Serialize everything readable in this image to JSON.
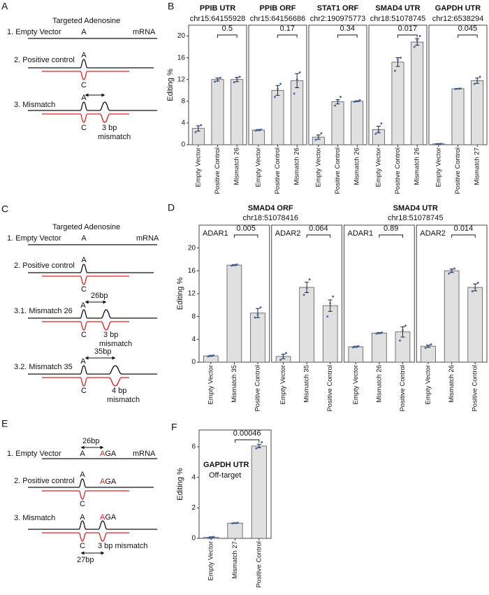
{
  "diagrams": {
    "A": {
      "panel": "A",
      "heading": "Targeted Adenosine",
      "rows": [
        {
          "label": "1. Empty Vector",
          "site": "A",
          "end": "mRNA"
        },
        {
          "label": "2. Positive control",
          "site": "A",
          "guide": "C"
        },
        {
          "label": "3. Mismatch",
          "site": "A",
          "guide": "C",
          "note": [
            "3 bp",
            "mismatch"
          ]
        }
      ]
    },
    "C": {
      "panel": "C",
      "heading": "Targeted Adenosine",
      "rows": [
        {
          "label": "1. Empty Vector",
          "site": "A",
          "end": "mRNA"
        },
        {
          "label": "2. Positive control",
          "site": "A",
          "guide": "C"
        },
        {
          "label": "3.1. Mismatch 26",
          "site": "A",
          "distance": "26bp",
          "guide": "C",
          "note": [
            "3 bp",
            "mismatch"
          ]
        },
        {
          "label": "3.2. Mismatch 35",
          "site": "A",
          "distance": "35bp",
          "guide": "C",
          "note": [
            "4 bp",
            "mismatch"
          ]
        }
      ]
    },
    "E": {
      "panel": "E",
      "distance": "26bp",
      "rows": [
        {
          "label": "1. Empty Vector",
          "site": "A",
          "off_target": [
            "A",
            "GA"
          ],
          "end": "mRNA"
        },
        {
          "label": "2. Positive control",
          "site": "A",
          "off_target": [
            "A",
            "GA"
          ],
          "guide": "C"
        },
        {
          "label": "3. Mismatch",
          "site": "A",
          "off_target": [
            "A",
            "GA"
          ],
          "guide": "C",
          "note": "3 bp mismatch",
          "distance": "27bp"
        }
      ]
    }
  },
  "chart_data": [
    {
      "type": "bar",
      "panel": "B",
      "ylabel": "Editing %",
      "ylim": [
        0,
        22
      ],
      "yticks": [
        0,
        4,
        8,
        12,
        16,
        20
      ],
      "groups": [
        {
          "title": "PPIB UTR",
          "subtitle": "chr15:64155928",
          "facets": [
            {
              "categories": [
                "Empty Vector",
                "Positive Control",
                "Mismatch 26"
              ],
              "values": [
                3.0,
                12.0,
                12.0
              ],
              "errors": [
                0.5,
                0.3,
                0.4
              ],
              "points": [
                [
                  2.3,
                  3.4,
                  3.6
                ],
                [
                  11.6,
                  12.2,
                  12.3
                ],
                [
                  11.5,
                  12.3,
                  12.5
                ]
              ],
              "p_value": 0.5
            }
          ]
        },
        {
          "title": "PPIB ORF",
          "subtitle": "chr15:64156686",
          "facets": [
            {
              "categories": [
                "Empty Vector",
                "Positive Control",
                "Mismatch 26"
              ],
              "values": [
                2.7,
                10.0,
                11.8
              ],
              "errors": [
                0.1,
                0.9,
                1.3
              ],
              "points": [
                [
                  2.6,
                  2.7,
                  2.8
                ],
                [
                  8.8,
                  10.3,
                  11.2
                ],
                [
                  9.4,
                  12.0,
                  13.3
                ]
              ],
              "p_value": 0.17
            }
          ]
        },
        {
          "title": "STAT1 ORF",
          "subtitle": "chr2:190975773",
          "facets": [
            {
              "categories": [
                "Empty Vector",
                "Positive Control",
                "Mismatch 26"
              ],
              "values": [
                1.4,
                7.9,
                8.0
              ],
              "errors": [
                0.4,
                0.4,
                0.1
              ],
              "points": [
                [
                  0.9,
                  1.4,
                  2.1
                ],
                [
                  7.2,
                  8.0,
                  8.8
                ],
                [
                  7.9,
                  8.0,
                  8.2
                ]
              ],
              "p_value": 0.34
            }
          ]
        },
        {
          "title": "SMAD4 UTR",
          "subtitle": "chr18:51078745",
          "facets": [
            {
              "categories": [
                "Empty Vector",
                "Positive Control",
                "Mismatch 26"
              ],
              "values": [
                2.8,
                15.2,
                18.9
              ],
              "errors": [
                0.6,
                0.8,
                0.6
              ],
              "points": [
                [
                  2.0,
                  2.5,
                  3.9
                ],
                [
                  13.6,
                  15.6,
                  16.0
                ],
                [
                  18.0,
                  19.2,
                  20.0
                ]
              ],
              "p_value": 0.017
            }
          ]
        },
        {
          "title": "GAPDH UTR",
          "subtitle": "chr12:6538294",
          "facets": [
            {
              "categories": [
                "Empty Vector",
                "Positive Control",
                "Mismatch 27"
              ],
              "values": [
                0.15,
                10.3,
                11.8
              ],
              "errors": [
                0.05,
                0.05,
                0.5
              ],
              "points": [
                [
                  0.1,
                  0.15,
                  0.2
                ],
                [
                  10.25,
                  10.3,
                  10.35
                ],
                [
                  11.2,
                  11.8,
                  12.5
                ]
              ],
              "p_value": 0.045
            }
          ]
        }
      ]
    },
    {
      "type": "bar",
      "panel": "D",
      "ylabel": "Editing %",
      "ylim": [
        0,
        24
      ],
      "yticks": [
        0,
        4,
        8,
        12,
        16,
        20
      ],
      "groups": [
        {
          "title": "SMAD4 ORF",
          "subtitle": "chr18:51078416",
          "facets": [
            {
              "label": "ADAR1",
              "categories": [
                "Empty Vector",
                "Mismatch 35",
                "Positive Control"
              ],
              "values": [
                1.1,
                17.0,
                8.6
              ],
              "errors": [
                0.1,
                0.1,
                0.8
              ],
              "points": [
                [
                  1.0,
                  1.1,
                  1.2
                ],
                [
                  16.9,
                  17.0,
                  17.1
                ],
                [
                  7.8,
                  8.3,
                  9.6
                ]
              ],
              "p_value": 0.005
            },
            {
              "label": "ADAR2",
              "categories": [
                "Empty Vector",
                "Mismatch 35",
                "Positive Control"
              ],
              "values": [
                1.0,
                13.1,
                9.9
              ],
              "errors": [
                0.4,
                0.9,
                1.0
              ],
              "points": [
                [
                  0.4,
                  1.0,
                  1.6
                ],
                [
                  11.8,
                  13.0,
                  14.5
                ],
                [
                  8.0,
                  10.3,
                  11.5
                ]
              ],
              "p_value": 0.064
            }
          ]
        },
        {
          "title": "SMAD4 UTR",
          "subtitle": "chr18:51078745",
          "facets": [
            {
              "label": "ADAR1",
              "categories": [
                "Empty Vector",
                "Mismatch 26",
                "Positive Control"
              ],
              "values": [
                2.7,
                5.1,
                5.3
              ],
              "errors": [
                0.1,
                0.1,
                0.9
              ],
              "points": [
                [
                  2.6,
                  2.7,
                  2.8
                ],
                [
                  5.0,
                  5.1,
                  5.2
                ],
                [
                  3.8,
                  5.6,
                  6.4
                ]
              ],
              "p_value": 0.89
            },
            {
              "label": "ADAR2",
              "categories": [
                "Empty Vector",
                "Mismatch 26",
                "Positive Control"
              ],
              "values": [
                2.8,
                16.0,
                13.1
              ],
              "errors": [
                0.2,
                0.3,
                0.6
              ],
              "points": [
                [
                  2.5,
                  2.9,
                  3.1
                ],
                [
                  15.5,
                  16.0,
                  16.4
                ],
                [
                  12.4,
                  13.0,
                  13.9
                ]
              ],
              "p_value": 0.014
            }
          ]
        }
      ]
    },
    {
      "type": "bar",
      "panel": "F",
      "ylabel": "Editing %",
      "ylim": [
        0,
        7.1
      ],
      "yticks": [
        0,
        2,
        4,
        6
      ],
      "groups": [
        {
          "facets": [
            {
              "title": "GAPDH UTR",
              "label": "Off-target",
              "categories": [
                "Empty Vector",
                "Mismatch 27",
                "Positive Control"
              ],
              "values": [
                0.07,
                1.0,
                6.05
              ],
              "errors": [
                0.03,
                0.02,
                0.12
              ],
              "points": [
                [
                  0.03,
                  0.08,
                  0.1
                ],
                [
                  0.98,
                  1.0,
                  1.02
                ],
                [
                  5.9,
                  6.0,
                  6.3
                ]
              ],
              "p_value": 0.00046
            }
          ]
        }
      ]
    }
  ]
}
